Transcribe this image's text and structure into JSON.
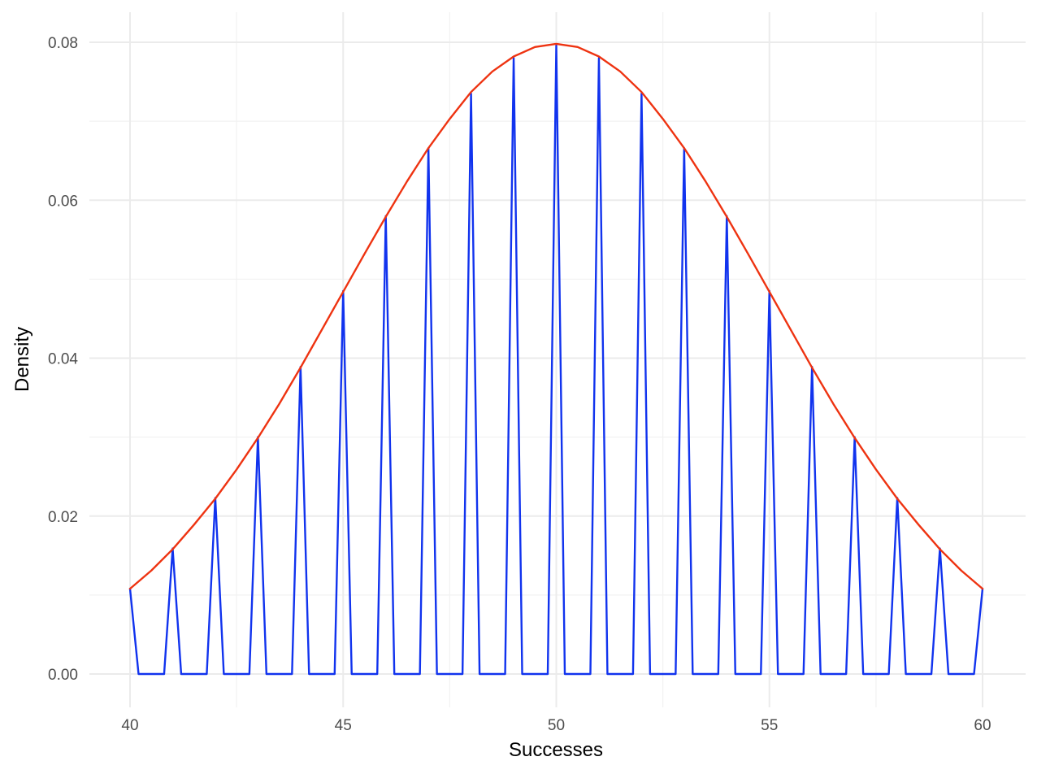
{
  "chart_data": {
    "type": "line",
    "title": "",
    "xlabel": "Successes",
    "ylabel": "Density",
    "xlim": [
      40,
      60
    ],
    "ylim": [
      0,
      0.08
    ],
    "x_ticks": [
      "40",
      "45",
      "50",
      "55",
      "60"
    ],
    "y_ticks": [
      "0.00",
      "0.02",
      "0.04",
      "0.06",
      "0.08"
    ],
    "grid": true,
    "legend": "none",
    "series": [
      {
        "color": "#1133ee",
        "x": [
          40,
          40.2,
          40.8,
          41,
          41.2,
          41.8,
          42,
          42.2,
          42.8,
          43,
          43.2,
          43.8,
          44,
          44.2,
          44.8,
          45,
          45.2,
          45.8,
          46,
          46.2,
          46.8,
          47,
          47.2,
          47.8,
          48,
          48.2,
          48.8,
          49,
          49.2,
          49.8,
          50,
          50.2,
          50.8,
          51,
          51.2,
          51.8,
          52,
          52.2,
          52.8,
          53,
          53.2,
          53.8,
          54,
          54.2,
          54.8,
          55,
          55.2,
          55.8,
          56,
          56.2,
          56.8,
          57,
          57.2,
          57.8,
          58,
          58.2,
          58.8,
          59,
          59.2,
          59.8,
          60
        ],
        "y": [
          0.0108,
          0,
          0,
          0.0159,
          0,
          0,
          0.0223,
          0,
          0,
          0.03,
          0,
          0,
          0.0389,
          0,
          0,
          0.0485,
          0,
          0,
          0.058,
          0,
          0,
          0.0666,
          0,
          0,
          0.0735,
          0,
          0,
          0.078,
          0,
          0,
          0.0796,
          0,
          0,
          0.078,
          0,
          0,
          0.0735,
          0,
          0,
          0.0666,
          0,
          0,
          0.058,
          0,
          0,
          0.0485,
          0,
          0,
          0.0389,
          0,
          0,
          0.03,
          0,
          0,
          0.0223,
          0,
          0,
          0.0159,
          0,
          0,
          0.0108
        ]
      },
      {
        "color": "#ee3311",
        "x": [
          40,
          40.5,
          41,
          41.5,
          42,
          42.5,
          43,
          43.5,
          44,
          44.5,
          45,
          45.5,
          46,
          46.5,
          47,
          47.5,
          48,
          48.5,
          49,
          49.5,
          50,
          50.5,
          51,
          51.5,
          52,
          52.5,
          53,
          53.5,
          54,
          54.5,
          55,
          55.5,
          56,
          56.5,
          57,
          57.5,
          58,
          58.5,
          59,
          59.5,
          60
        ],
        "y": [
          0.0108,
          0.0131,
          0.0158,
          0.0189,
          0.0222,
          0.0259,
          0.0299,
          0.0342,
          0.0388,
          0.0436,
          0.0484,
          0.0532,
          0.0579,
          0.0624,
          0.0666,
          0.0703,
          0.0737,
          0.0763,
          0.0782,
          0.0794,
          0.0798,
          0.0794,
          0.0782,
          0.0763,
          0.0737,
          0.0703,
          0.0666,
          0.0624,
          0.0579,
          0.0532,
          0.0484,
          0.0436,
          0.0388,
          0.0342,
          0.0299,
          0.0259,
          0.0222,
          0.0189,
          0.0158,
          0.0131,
          0.0108
        ]
      }
    ]
  }
}
